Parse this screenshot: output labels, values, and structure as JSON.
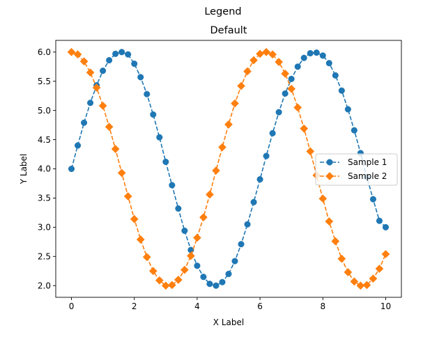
{
  "figure": {
    "suptitle": "Legend"
  },
  "chart_data": {
    "type": "line",
    "title": "Default",
    "xlabel": "X Label",
    "ylabel": "Y Label",
    "xlim": [
      -0.5,
      10.5
    ],
    "ylim": [
      1.8,
      6.2
    ],
    "xticks": [
      0,
      2,
      4,
      6,
      8,
      10
    ],
    "xtick_labels": [
      "0",
      "2",
      "4",
      "6",
      "8",
      "10"
    ],
    "yticks": [
      2.0,
      2.5,
      3.0,
      3.5,
      4.0,
      4.5,
      5.0,
      5.5,
      6.0
    ],
    "ytick_labels": [
      "2.0",
      "2.5",
      "3.0",
      "3.5",
      "4.0",
      "4.5",
      "5.0",
      "5.5",
      "6.0"
    ],
    "grid": false,
    "legend": {
      "position": "center-right"
    },
    "x": [
      0.0,
      0.2,
      0.4,
      0.6,
      0.8,
      1.0,
      1.2,
      1.4,
      1.6,
      1.8,
      2.0,
      2.2,
      2.4,
      2.6,
      2.8,
      3.0,
      3.2,
      3.4,
      3.6,
      3.8,
      4.0,
      4.2,
      4.4,
      4.6,
      4.8,
      5.0,
      5.2,
      5.4,
      5.6,
      5.8,
      6.0,
      6.2,
      6.4,
      6.6,
      6.8,
      7.0,
      7.2,
      7.4,
      7.6,
      7.8,
      8.0,
      8.2,
      8.4,
      8.6,
      8.8,
      9.0,
      9.2,
      9.4,
      9.6,
      9.8,
      10.0
    ],
    "series": [
      {
        "name": "Sample 1",
        "color": "#1f77b4",
        "marker": "circle",
        "linestyle": "dashed",
        "values": [
          4.0,
          4.4,
          4.79,
          5.13,
          5.43,
          5.68,
          5.86,
          5.97,
          6.0,
          5.96,
          5.8,
          5.57,
          5.28,
          4.93,
          4.54,
          4.12,
          3.72,
          3.32,
          2.94,
          2.61,
          2.34,
          2.15,
          2.03,
          2.0,
          2.06,
          2.2,
          2.42,
          2.71,
          3.05,
          3.43,
          3.82,
          4.22,
          4.61,
          4.97,
          5.29,
          5.54,
          5.75,
          5.9,
          5.98,
          5.99,
          5.94,
          5.81,
          5.6,
          5.34,
          5.02,
          4.66,
          4.27,
          3.86,
          3.48,
          3.11,
          3.0
        ]
      },
      {
        "name": "Sample 2",
        "color": "#ff7f0e",
        "marker": "diamond",
        "linestyle": "dashed",
        "values": [
          6.0,
          5.96,
          5.84,
          5.65,
          5.39,
          5.08,
          4.72,
          4.34,
          3.93,
          3.53,
          3.14,
          2.79,
          2.49,
          2.25,
          2.09,
          2.0,
          2.01,
          2.1,
          2.27,
          2.51,
          2.82,
          3.17,
          3.56,
          3.97,
          4.37,
          4.76,
          5.12,
          5.42,
          5.67,
          5.86,
          5.97,
          6.0,
          5.96,
          5.83,
          5.63,
          5.37,
          5.05,
          4.69,
          4.3,
          3.89,
          3.49,
          3.1,
          2.76,
          2.46,
          2.23,
          2.07,
          2.0,
          2.01,
          2.12,
          2.29,
          2.54
        ]
      }
    ]
  }
}
